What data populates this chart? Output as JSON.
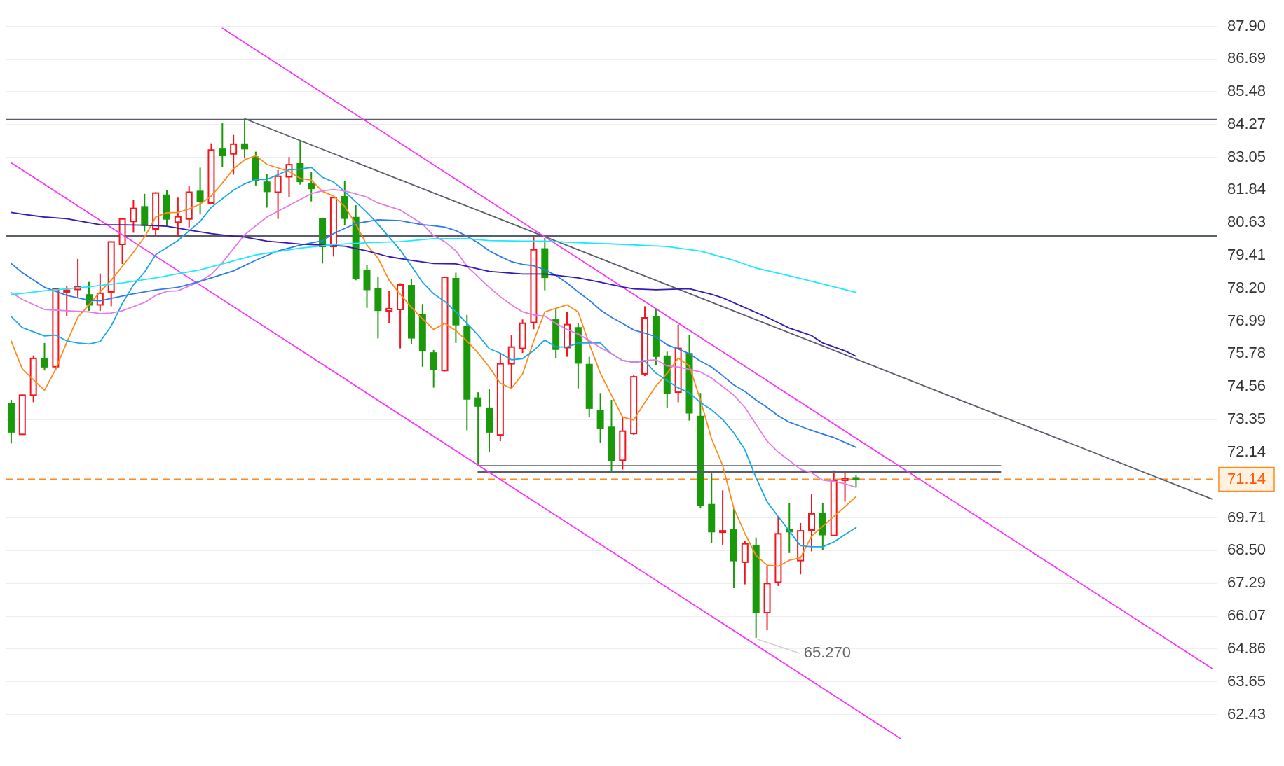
{
  "chart_data": {
    "type": "candlestick",
    "categories": [
      null,
      null,
      null,
      null,
      null,
      null,
      null,
      null,
      null,
      null,
      null,
      null,
      null,
      null,
      null,
      null,
      null,
      null,
      null,
      null,
      null,
      null,
      null,
      null,
      null,
      null,
      null,
      null,
      null,
      null,
      null,
      null,
      null,
      null,
      null,
      null,
      null,
      null,
      null,
      null,
      null,
      null,
      null,
      null,
      null,
      null,
      null,
      null,
      null,
      null,
      null,
      null,
      null,
      null,
      null,
      null,
      null,
      null,
      null,
      null,
      null,
      null,
      null,
      null,
      null,
      null,
      null,
      null,
      null,
      null,
      null,
      null,
      null,
      null,
      null,
      null,
      null,
      null,
      null,
      null,
      null,
      null,
      null,
      null,
      null,
      null,
      null,
      null,
      null,
      null,
      null,
      null,
      null,
      null,
      null,
      null,
      null,
      null,
      null,
      null,
      null,
      null,
      null,
      null,
      null,
      null,
      null,
      null,
      null
    ],
    "ohlc": [
      [
        73.94,
        74.08,
        72.46,
        72.89
      ],
      [
        72.8,
        74.27,
        72.78,
        74.25
      ],
      [
        74.25,
        75.72,
        73.99,
        75.61
      ],
      [
        75.58,
        76.18,
        75.16,
        75.3
      ],
      [
        75.3,
        78.21,
        75.16,
        78.19
      ],
      [
        78.07,
        78.3,
        77.17,
        78.13
      ],
      [
        78.16,
        79.29,
        77.85,
        78.27
      ],
      [
        77.96,
        78.44,
        77.37,
        77.59
      ],
      [
        77.59,
        78.75,
        77.37,
        78.02
      ],
      [
        78.07,
        79.94,
        77.54,
        79.92
      ],
      [
        79.83,
        80.8,
        79.1,
        80.77
      ],
      [
        80.68,
        81.48,
        80.26,
        81.16
      ],
      [
        81.22,
        81.7,
        80.31,
        80.54
      ],
      [
        80.4,
        81.76,
        80.14,
        81.73
      ],
      [
        81.65,
        81.84,
        80.51,
        80.77
      ],
      [
        80.65,
        81.56,
        80.12,
        80.85
      ],
      [
        80.77,
        81.99,
        80.46,
        81.76
      ],
      [
        81.79,
        82.67,
        80.94,
        81.42
      ],
      [
        81.36,
        83.57,
        81.33,
        83.32
      ],
      [
        83.35,
        84.31,
        82.69,
        83.12
      ],
      [
        83.18,
        83.88,
        82.41,
        83.54
      ],
      [
        83.54,
        84.46,
        83.01,
        83.37
      ],
      [
        83.06,
        83.26,
        82.01,
        82.21
      ],
      [
        82.13,
        82.44,
        81.19,
        81.79
      ],
      [
        81.76,
        82.58,
        80.77,
        82.35
      ],
      [
        82.33,
        83.06,
        81.59,
        82.78
      ],
      [
        82.81,
        83.69,
        82.04,
        82.16
      ],
      [
        82.07,
        82.52,
        81.42,
        81.9
      ],
      [
        80.77,
        80.82,
        79.12,
        79.75
      ],
      [
        79.75,
        81.59,
        79.38,
        81.56
      ],
      [
        81.59,
        82.18,
        80.54,
        80.8
      ],
      [
        80.82,
        81.28,
        78.5,
        78.56
      ],
      [
        78.87,
        79.07,
        77.48,
        78.16
      ],
      [
        78.19,
        78.64,
        76.35,
        77.39
      ],
      [
        77.37,
        78.1,
        76.91,
        77.45
      ],
      [
        77.42,
        78.39,
        75.98,
        78.33
      ],
      [
        78.3,
        78.56,
        76.15,
        76.37
      ],
      [
        77.22,
        77.62,
        75.3,
        75.89
      ],
      [
        75.81,
        75.92,
        74.53,
        75.21
      ],
      [
        75.16,
        78.64,
        75.13,
        78.61
      ],
      [
        78.56,
        78.78,
        76.18,
        76.86
      ],
      [
        76.8,
        77.22,
        72.95,
        74.11
      ],
      [
        74.14,
        74.36,
        71.64,
        73.85
      ],
      [
        73.77,
        74.48,
        72.15,
        72.89
      ],
      [
        72.78,
        75.78,
        72.55,
        75.41
      ],
      [
        75.41,
        76.46,
        74.5,
        76.03
      ],
      [
        75.98,
        77.05,
        75.81,
        76.91
      ],
      [
        76.94,
        80.09,
        76.69,
        79.63
      ],
      [
        79.66,
        80.06,
        78.13,
        78.61
      ],
      [
        77.03,
        77.42,
        75.61,
        75.95
      ],
      [
        76.01,
        77.34,
        75.67,
        76.86
      ],
      [
        76.74,
        76.91,
        74.5,
        75.44
      ],
      [
        75.38,
        75.67,
        73.43,
        73.77
      ],
      [
        73.68,
        74.33,
        72.49,
        73.03
      ],
      [
        73.06,
        74.08,
        71.41,
        71.84
      ],
      [
        71.84,
        73.43,
        71.5,
        72.92
      ],
      [
        72.83,
        74.99,
        72.78,
        74.93
      ],
      [
        75.04,
        77.54,
        74.96,
        77.11
      ],
      [
        77.14,
        77.42,
        75.35,
        75.69
      ],
      [
        75.69,
        75.86,
        73.77,
        74.33
      ],
      [
        74.36,
        76.86,
        73.99,
        75.98
      ],
      [
        75.78,
        76.49,
        73.31,
        73.6
      ],
      [
        73.46,
        74.33,
        70.08,
        70.17
      ],
      [
        70.2,
        71.39,
        68.78,
        69.2
      ],
      [
        69.18,
        70.73,
        68.69,
        69.23
      ],
      [
        69.26,
        70.05,
        67.11,
        68.13
      ],
      [
        68.07,
        68.86,
        67.25,
        68.75
      ],
      [
        68.67,
        68.98,
        65.27,
        66.23
      ],
      [
        66.2,
        67.93,
        65.55,
        67.28
      ],
      [
        67.33,
        69.77,
        67.19,
        69.12
      ],
      [
        69.26,
        70.25,
        68.41,
        69.2
      ],
      [
        68.13,
        69.52,
        67.62,
        69.23
      ],
      [
        69.26,
        70.59,
        68.47,
        69.86
      ],
      [
        69.88,
        70.25,
        68.52,
        69.09
      ],
      [
        69.06,
        71.47,
        69.03,
        71.1
      ],
      [
        71.1,
        71.39,
        70.31,
        71.16
      ],
      [
        71.19,
        71.3,
        70.85,
        71.14
      ],
      null,
      null,
      null,
      null,
      null,
      null,
      null,
      null,
      null,
      null,
      null,
      null,
      null,
      null,
      null,
      null,
      null,
      null,
      null,
      null,
      null,
      null,
      null,
      null,
      null,
      null,
      null,
      null,
      null,
      null,
      null,
      null
    ],
    "colors": [
      "#1a9a0a",
      "#f0161e",
      "#f0161e",
      "#1a9a0a",
      "#f0161e",
      "#f0161e",
      "#f0161e",
      "#1a9a0a",
      "#f0161e",
      "#f0161e",
      "#f0161e",
      "#f0161e",
      "#1a9a0a",
      "#f0161e",
      "#1a9a0a",
      "#f0161e",
      "#f0161e",
      "#1a9a0a",
      "#f0161e",
      "#1a9a0a",
      "#f0161e",
      "#1a9a0a",
      "#1a9a0a",
      "#1a9a0a",
      "#f0161e",
      "#f0161e",
      "#1a9a0a",
      "#1a9a0a",
      "#1a9a0a",
      "#f0161e",
      "#1a9a0a",
      "#1a9a0a",
      "#1a9a0a",
      "#1a9a0a",
      "#f0161e",
      "#f0161e",
      "#1a9a0a",
      "#1a9a0a",
      "#1a9a0a",
      "#f0161e",
      "#1a9a0a",
      "#1a9a0a",
      "#1a9a0a",
      "#1a9a0a",
      "#f0161e",
      "#f0161e",
      "#f0161e",
      "#f0161e",
      "#1a9a0a",
      "#1a9a0a",
      "#f0161e",
      "#1a9a0a",
      "#1a9a0a",
      "#1a9a0a",
      "#1a9a0a",
      "#f0161e",
      "#f0161e",
      "#f0161e",
      "#1a9a0a",
      "#1a9a0a",
      "#f0161e",
      "#1a9a0a",
      "#1a9a0a",
      "#1a9a0a",
      "#f0161e",
      "#1a9a0a",
      "#f0161e",
      "#1a9a0a",
      "#f0161e",
      "#f0161e",
      "#1a9a0a",
      "#f0161e",
      "#f0161e",
      "#1a9a0a",
      "#f0161e",
      "#f0161e",
      "#1a9a0a",
      null,
      null,
      null,
      null,
      null,
      null,
      null,
      null,
      null,
      null,
      null,
      null,
      null,
      null,
      null,
      null,
      null,
      null,
      null,
      null,
      null,
      null,
      null,
      null,
      null,
      null,
      null,
      null,
      null,
      null,
      null,
      null
    ],
    "series": [
      {
        "type": "line",
        "color": "#19eaff",
        "values": [
          77.97,
          null,
          null,
          78.11,
          null,
          null,
          null,
          78.26,
          null,
          null,
          78.4,
          null,
          null,
          78.59,
          null,
          null,
          null,
          78.89,
          null,
          79.11,
          null,
          null,
          79.44,
          null,
          null,
          null,
          79.69,
          null,
          null,
          79.82,
          null,
          null,
          79.89,
          null,
          null,
          79.93,
          null,
          null,
          80.04,
          null,
          null,
          80.04,
          null,
          79.97,
          null,
          null,
          79.95,
          null,
          79.95,
          null,
          null,
          79.89,
          null,
          null,
          null,
          79.83,
          null,
          null,
          null,
          79.75,
          null,
          null,
          79.58,
          null,
          null,
          79.24,
          null,
          78.95,
          null,
          null,
          78.67,
          null,
          null,
          78.36,
          null,
          null,
          78.05,
          null,
          null,
          null,
          null,
          null,
          null,
          null,
          null,
          null,
          null,
          null,
          null,
          null,
          null,
          null,
          null,
          null,
          null,
          null,
          null,
          null,
          null,
          null,
          null,
          null,
          null,
          null,
          null,
          null,
          null,
          null,
          null
        ]
      },
      {
        "type": "line",
        "color": "#3619b5",
        "values": [
          81.01,
          80.95,
          null,
          80.84,
          null,
          80.78,
          null,
          80.63,
          80.56,
          null,
          80.55,
          null,
          80.54,
          null,
          80.5,
          null,
          80.36,
          null,
          80.23,
          null,
          80.13,
          80.1,
          null,
          79.95,
          null,
          null,
          79.84,
          null,
          null,
          null,
          79.76,
          null,
          79.59,
          null,
          79.37,
          null,
          79.24,
          null,
          79.12,
          null,
          79.11,
          79.02,
          null,
          78.83,
          null,
          null,
          78.73,
          null,
          78.73,
          null,
          null,
          78.59,
          null,
          78.43,
          null,
          78.25,
          78.18,
          null,
          78.15,
          78.16,
          null,
          78.19,
          null,
          77.98,
          77.85,
          null,
          77.49,
          null,
          77.13,
          null,
          76.73,
          null,
          76.45,
          76.18,
          null,
          75.89,
          75.69,
          null,
          null,
          null,
          null,
          null,
          null,
          null,
          null,
          null,
          null,
          null,
          null,
          null,
          null,
          null,
          null,
          null,
          null,
          null,
          null,
          null,
          null,
          null,
          null,
          null,
          null,
          null,
          null,
          null,
          null,
          null,
          null
        ]
      },
      {
        "type": "line",
        "color": "#2a7cf0",
        "values": [
          79.12,
          78.78,
          null,
          78.24,
          null,
          77.94,
          null,
          77.76,
          77.74,
          77.83,
          null,
          78.0,
          null,
          78.14,
          null,
          78.24,
          null,
          78.46,
          78.59,
          null,
          78.85,
          null,
          79.24,
          null,
          79.59,
          null,
          79.8,
          null,
          79.96,
          80.23,
          80.42,
          80.6,
          null,
          80.74,
          null,
          80.71,
          80.63,
          80.56,
          80.52,
          80.47,
          80.34,
          80.13,
          79.89,
          79.59,
          79.38,
          79.19,
          79.09,
          79.04,
          78.89,
          78.68,
          78.4,
          78.07,
          77.76,
          77.4,
          77.13,
          76.9,
          76.66,
          76.54,
          76.41,
          76.11,
          75.96,
          75.78,
          75.51,
          75.29,
          74.97,
          74.63,
          74.39,
          74.07,
          73.8,
          73.49,
          73.25,
          73.1,
          72.95,
          72.81,
          72.68,
          72.5,
          72.32,
          null,
          null,
          null,
          null,
          null,
          null,
          null,
          null,
          null,
          null,
          null,
          null,
          null,
          null,
          null,
          null,
          null,
          null,
          null,
          null,
          null,
          null,
          null,
          null,
          null,
          null,
          null,
          null,
          null,
          null,
          null,
          null
        ]
      },
      {
        "type": "line",
        "color": "#e67ae6",
        "values": [
          78.05,
          77.79,
          null,
          77.42,
          null,
          77.37,
          null,
          77.33,
          77.27,
          77.29,
          77.37,
          null,
          77.68,
          77.94,
          78.09,
          78.11,
          null,
          78.46,
          78.72,
          79.15,
          79.67,
          80.19,
          null,
          80.84,
          null,
          null,
          81.49,
          81.71,
          81.81,
          81.86,
          81.81,
          null,
          81.58,
          81.36,
          null,
          81.1,
          null,
          80.58,
          80.15,
          79.93,
          79.59,
          79.02,
          78.63,
          78.24,
          77.89,
          77.59,
          77.33,
          77.22,
          77.18,
          76.9,
          76.68,
          76.51,
          76.27,
          76.01,
          75.78,
          75.53,
          75.47,
          75.53,
          75.56,
          75.33,
          75.29,
          75.2,
          75.11,
          74.88,
          74.57,
          74.25,
          73.8,
          73.17,
          72.55,
          72.14,
          71.83,
          71.51,
          71.38,
          71.11,
          71.06,
          70.97,
          70.84,
          null,
          null,
          null,
          null,
          null,
          null,
          null,
          null,
          null,
          null,
          null,
          null,
          null,
          null,
          null,
          null,
          null,
          null,
          null,
          null,
          null,
          null,
          null,
          null,
          null,
          null,
          null,
          null,
          null,
          null,
          null,
          null
        ]
      },
      {
        "type": "line",
        "color": "#1aa7e8",
        "values": [
          77.16,
          76.75,
          null,
          76.44,
          76.47,
          76.26,
          76.18,
          76.14,
          76.23,
          76.81,
          77.64,
          78.33,
          78.8,
          79.45,
          null,
          79.97,
          null,
          80.68,
          81.2,
          null,
          81.84,
          82.07,
          82.23,
          82.23,
          null,
          82.59,
          82.62,
          82.68,
          82.31,
          82.14,
          81.79,
          81.4,
          81.01,
          80.58,
          null,
          79.62,
          null,
          78.43,
          78.0,
          77.72,
          77.33,
          76.9,
          76.47,
          75.97,
          75.8,
          75.56,
          75.6,
          75.9,
          76.29,
          76.03,
          76.03,
          76.18,
          76.18,
          76.18,
          75.78,
          75.53,
          75.47,
          75.51,
          75.06,
          74.79,
          74.52,
          74.34,
          73.98,
          73.71,
          73.35,
          72.86,
          72.23,
          71.2,
          70.3,
          69.76,
          69.22,
          68.68,
          68.64,
          68.64,
          68.82,
          69.09,
          69.35,
          null,
          null,
          null,
          null,
          null,
          null,
          null,
          null,
          null,
          null,
          null,
          null,
          null,
          null,
          null,
          null,
          null,
          null,
          null,
          null,
          null,
          null,
          null,
          null,
          null,
          null,
          null,
          null,
          null,
          null,
          null,
          null
        ]
      },
      {
        "type": "line",
        "color": "#ff8a1e",
        "values": [
          76.25,
          75.22,
          74.82,
          74.43,
          75.21,
          76.2,
          77.13,
          77.59,
          78.07,
          78.5,
          79.02,
          79.54,
          80.1,
          80.84,
          81.0,
          81.01,
          81.14,
          81.32,
          81.62,
          82.1,
          82.62,
          82.96,
          83.11,
          82.79,
          82.66,
          82.53,
          82.27,
          82.21,
          81.79,
          81.62,
          81.23,
          80.58,
          79.8,
          79.32,
          78.5,
          77.98,
          77.5,
          77.07,
          76.68,
          76.9,
          76.64,
          76.25,
          75.81,
          75.29,
          74.69,
          74.5,
          75.03,
          76.25,
          77.33,
          77.46,
          77.59,
          77.33,
          76.14,
          75.06,
          74.25,
          73.44,
          73.33,
          73.98,
          74.59,
          75.06,
          75.62,
          75.33,
          74.07,
          72.64,
          71.65,
          70.07,
          69.13,
          68.32,
          67.96,
          67.92,
          68.14,
          68.23,
          69.04,
          69.4,
          69.76,
          70.12,
          70.5,
          null,
          null,
          null,
          null,
          null,
          null,
          null,
          null,
          null,
          null,
          null,
          null,
          null,
          null,
          null,
          null,
          null,
          null,
          null,
          null,
          null,
          null,
          null,
          null,
          null,
          null,
          null,
          null,
          null,
          null,
          null,
          null
        ]
      },
      {
        "type": "line",
        "color": "#ff33ff",
        "values": [
          null,
          null,
          null,
          null,
          null,
          null,
          null,
          null,
          null,
          null,
          null,
          null,
          null,
          null,
          null,
          null,
          null,
          null,
          null,
          87.83,
          null,
          null,
          null,
          null,
          null,
          null,
          null,
          null,
          null,
          null,
          null,
          null,
          null,
          null,
          null,
          null,
          null,
          null,
          null,
          null,
          null,
          null,
          null,
          null,
          null,
          null,
          null,
          null,
          null,
          null,
          null,
          null,
          null,
          null,
          null,
          null,
          null,
          null,
          null,
          null,
          null,
          null,
          null,
          null,
          null,
          null,
          null,
          null,
          null,
          null,
          null,
          null,
          null,
          null,
          null,
          null,
          null,
          null,
          null,
          null,
          null,
          null,
          null,
          null,
          null,
          null,
          null,
          null,
          null,
          null,
          null,
          null,
          null,
          null,
          null,
          null,
          null,
          null,
          null,
          null,
          null,
          null,
          null,
          null,
          null,
          null,
          null,
          null,
          64.14
        ]
      },
      {
        "type": "line",
        "color": "#ff33ff",
        "values": [
          82.85,
          null,
          null,
          null,
          null,
          null,
          null,
          null,
          null,
          null,
          null,
          null,
          null,
          null,
          null,
          null,
          null,
          null,
          null,
          null,
          null,
          null,
          null,
          null,
          null,
          null,
          null,
          null,
          null,
          null,
          null,
          null,
          null,
          null,
          null,
          null,
          null,
          null,
          null,
          null,
          null,
          null,
          null,
          null,
          null,
          null,
          null,
          null,
          null,
          null,
          null,
          null,
          null,
          null,
          null,
          null,
          null,
          null,
          null,
          null,
          null,
          null,
          null,
          null,
          null,
          null,
          null,
          null,
          null,
          null,
          null,
          null,
          null,
          null,
          null,
          null,
          null,
          null,
          null,
          null,
          61.54,
          null,
          null,
          null,
          null,
          null,
          null,
          null,
          null,
          null,
          null,
          null,
          null,
          null,
          null,
          null,
          null,
          null,
          null,
          null,
          null,
          null,
          null,
          null,
          null,
          null,
          null,
          null,
          null
        ]
      },
      {
        "type": "line",
        "color": "#585e6b",
        "values": [
          null,
          null,
          null,
          null,
          null,
          null,
          null,
          null,
          null,
          null,
          null,
          null,
          null,
          null,
          null,
          null,
          null,
          null,
          null,
          null,
          null,
          84.48,
          null,
          null,
          null,
          null,
          null,
          null,
          null,
          null,
          null,
          null,
          null,
          null,
          null,
          null,
          null,
          null,
          null,
          null,
          null,
          null,
          null,
          null,
          null,
          null,
          null,
          null,
          null,
          null,
          null,
          null,
          null,
          null,
          null,
          null,
          null,
          null,
          null,
          null,
          null,
          null,
          null,
          null,
          null,
          null,
          null,
          null,
          null,
          null,
          null,
          null,
          null,
          null,
          null,
          null,
          null,
          null,
          null,
          null,
          null,
          null,
          null,
          null,
          null,
          null,
          null,
          null,
          null,
          null,
          null,
          null,
          null,
          null,
          null,
          null,
          null,
          null,
          null,
          null,
          null,
          null,
          null,
          null,
          null,
          null,
          null,
          null,
          70.41
        ]
      },
      {
        "type": "line",
        "color": "#585e6b",
        "values": [
          null,
          null,
          null,
          null,
          null,
          null,
          null,
          null,
          null,
          null,
          null,
          null,
          null,
          null,
          null,
          null,
          null,
          null,
          null,
          null,
          null,
          null,
          null,
          null,
          null,
          null,
          null,
          null,
          null,
          null,
          null,
          null,
          null,
          null,
          null,
          null,
          null,
          null,
          null,
          null,
          null,
          null,
          71.64,
          null,
          null,
          null,
          null,
          null,
          null,
          null,
          null,
          null,
          null,
          null,
          null,
          null,
          null,
          null,
          null,
          null,
          null,
          null,
          null,
          null,
          null,
          null,
          null,
          null,
          null,
          null,
          null,
          null,
          null,
          null,
          null,
          null,
          null,
          null,
          null,
          null,
          null,
          null,
          null,
          null,
          null,
          null,
          null,
          null,
          null,
          71.64,
          null,
          null,
          null,
          null,
          null,
          null,
          null,
          null,
          null,
          null,
          null,
          null,
          null,
          null,
          null,
          null,
          null,
          null,
          null
        ]
      },
      {
        "type": "line",
        "color": "#585e6b",
        "values": [
          null,
          null,
          null,
          null,
          null,
          null,
          null,
          null,
          null,
          null,
          null,
          null,
          null,
          null,
          null,
          null,
          null,
          null,
          null,
          null,
          null,
          null,
          null,
          null,
          null,
          null,
          null,
          null,
          null,
          null,
          null,
          null,
          null,
          null,
          null,
          null,
          null,
          null,
          null,
          null,
          null,
          null,
          71.41,
          null,
          null,
          null,
          null,
          null,
          null,
          null,
          null,
          null,
          null,
          null,
          null,
          null,
          null,
          null,
          null,
          null,
          null,
          null,
          null,
          null,
          null,
          null,
          null,
          null,
          null,
          null,
          null,
          null,
          null,
          null,
          null,
          null,
          null,
          null,
          null,
          null,
          null,
          null,
          null,
          null,
          null,
          null,
          null,
          null,
          null,
          71.41,
          null,
          null,
          null,
          null,
          null,
          null,
          null,
          null,
          null,
          null,
          null,
          null,
          null,
          null,
          null,
          null,
          null,
          null,
          null
        ]
      }
    ],
    "ylim": [
      61.44,
      87.96
    ],
    "yticks": [
      {
        "value": 87.9,
        "label": "87.90"
      },
      86.69,
      85.48,
      84.27,
      83.05,
      81.84,
      80.63,
      79.41,
      {
        "value": 78.2,
        "label": "78.20"
      },
      76.99,
      75.78,
      74.56,
      73.35,
      72.14,
      69.71,
      {
        "value": 68.5,
        "label": "68.50"
      },
      67.29,
      66.07,
      64.86,
      63.65,
      62.43
    ],
    "grid": "y",
    "legend": false,
    "tick_labels": "y",
    "line_style": "solid",
    "ref_lines": [
      {
        "axis": "y",
        "value": 84.45,
        "color": "#585e6b"
      },
      {
        "axis": "y",
        "value": 80.14,
        "color": "#585e6b"
      },
      {
        "axis": "y",
        "value": 71.14,
        "label": "71.14",
        "color": "#ff8a1e",
        "line_style": "dashed"
      }
    ],
    "annotations": [
      "65.270"
    ]
  }
}
